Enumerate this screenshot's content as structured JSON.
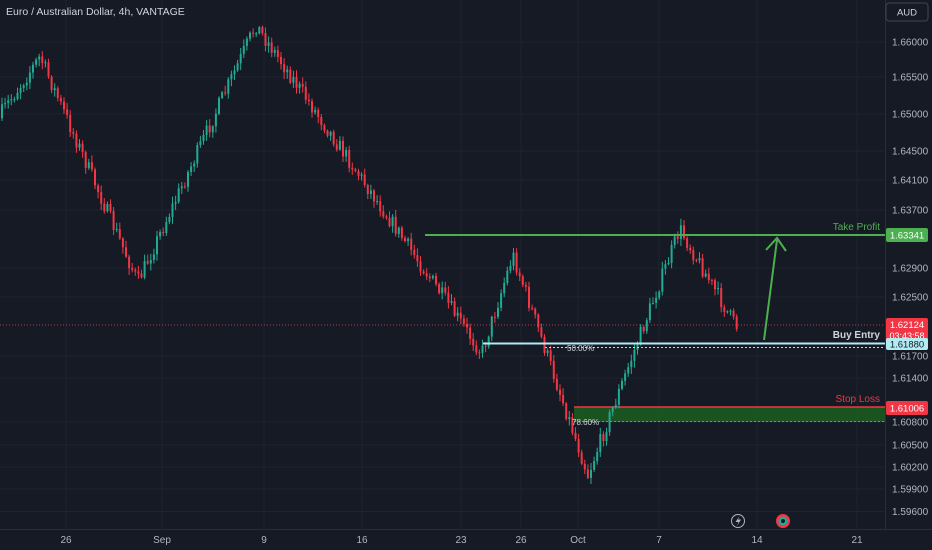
{
  "header": {
    "title": "Euro / Australian Dollar, 4h, VANTAGE",
    "currency_button": "AUD"
  },
  "colors": {
    "background": "#161a25",
    "up": "#22ab94",
    "down": "#f23645",
    "take_profit": "#4caf50",
    "buy_entry": "#b2ebf2",
    "stop_loss": "#f23645",
    "zone": "#1b5e20"
  },
  "chart_data": {
    "type": "candlestick",
    "title": "Euro / Australian Dollar, 4h, VANTAGE",
    "y_ticks": [
      "1.66000",
      "1.65500",
      "1.65000",
      "1.64500",
      "1.64100",
      "1.63700",
      "1.62900",
      "1.62500",
      "1.61700",
      "1.61400",
      "1.60800",
      "1.60500",
      "1.60200",
      "1.59900",
      "1.59600"
    ],
    "x_ticks": [
      "26",
      "Sep",
      "9",
      "16",
      "23",
      "26",
      "Oct",
      "7",
      "14",
      "21"
    ],
    "ylim": [
      1.5955,
      1.6625
    ],
    "key_points": [
      {
        "label": "start",
        "value": 1.6496
      },
      {
        "label": "swing-high-1",
        "value": 1.658
      },
      {
        "label": "swing-low-1",
        "value": 1.6273
      },
      {
        "label": "swing-high-2",
        "value": 1.6623
      },
      {
        "label": "swing-low-2",
        "value": 1.6176
      },
      {
        "label": "bounce-high",
        "value": 1.631
      },
      {
        "label": "swing-low-3",
        "value": 1.601
      },
      {
        "label": "rally-high",
        "value": 1.6345
      },
      {
        "label": "current",
        "value": 1.6212
      }
    ],
    "levels": [
      {
        "name": "Take Profit",
        "price": "1.63341",
        "color": "#4caf50"
      },
      {
        "name": "Buy Entry",
        "price": "1.61880",
        "color": "#b2ebf2"
      },
      {
        "name": "Stop Loss",
        "price": "1.61006",
        "color": "#f23645"
      }
    ],
    "fib_labels": [
      "50.00%",
      "78.60%"
    ],
    "current_price": {
      "price": "1.62124",
      "countdown": "03:43:58"
    }
  },
  "footer": {
    "lightning_icon": "lightning-icon",
    "logo_icon": "tradingview-logo-icon"
  }
}
